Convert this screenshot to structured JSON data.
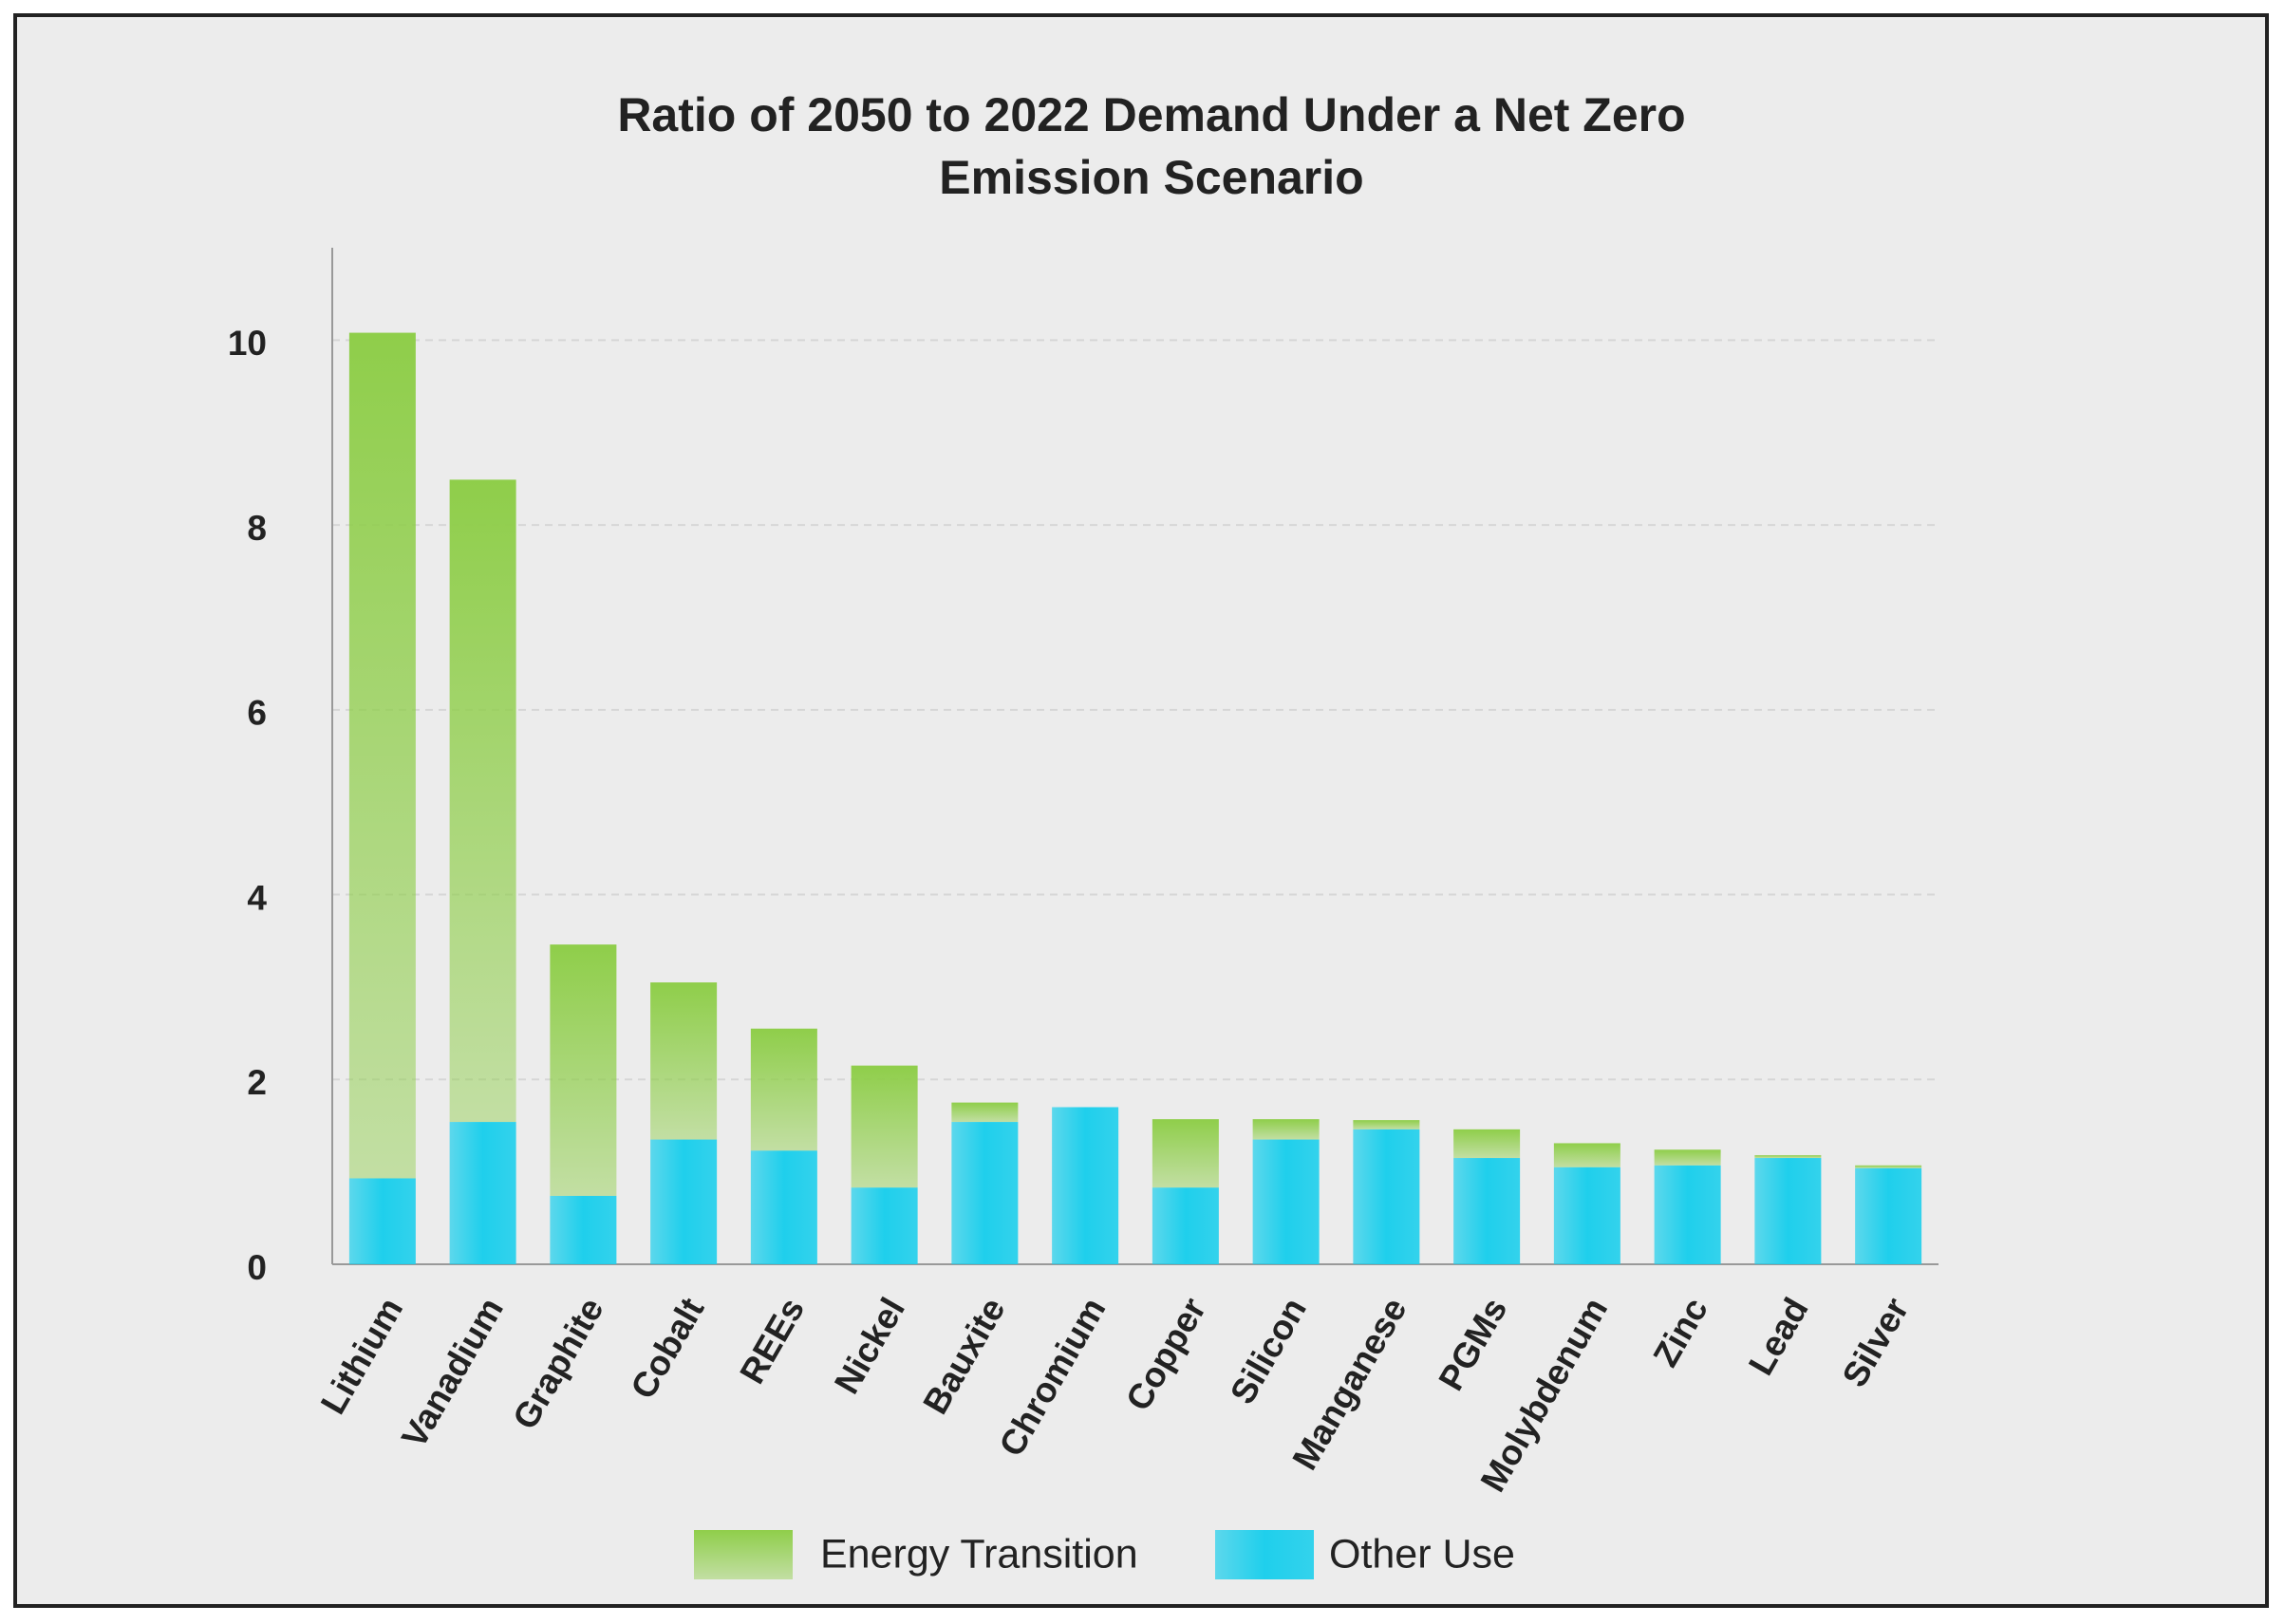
{
  "chart_data": {
    "type": "stacked_bar",
    "title": "Ratio of 2050 to 2022 Demand Under a Net Zero Emission Scenario",
    "categories": [
      "Lithium",
      "Vanadium",
      "Graphite",
      "Cobalt",
      "REEs",
      "Nickel",
      "Bauxite",
      "Chromium",
      "Copper",
      "Silicon",
      "Manganese",
      "PGMs",
      "Molybdenum",
      "Zinc",
      "Lead",
      "Silver"
    ],
    "series": [
      {
        "name": "Energy Transition",
        "color": "#8fce4a",
        "values": [
          9.15,
          6.95,
          2.72,
          1.7,
          1.32,
          1.32,
          0.21,
          0,
          0.74,
          0.22,
          0.1,
          0.31,
          0.26,
          0.17,
          0.03,
          0.03
        ]
      },
      {
        "name": "Other Use",
        "color": "#1fcfec",
        "values": [
          0.93,
          1.54,
          0.74,
          1.35,
          1.23,
          0.83,
          1.54,
          1.7,
          0.83,
          1.35,
          1.46,
          1.15,
          1.05,
          1.07,
          1.15,
          1.04
        ]
      }
    ],
    "ylim": [
      0,
      11
    ],
    "yticks": [
      0,
      2,
      4,
      6,
      8,
      10
    ],
    "grid": true
  }
}
